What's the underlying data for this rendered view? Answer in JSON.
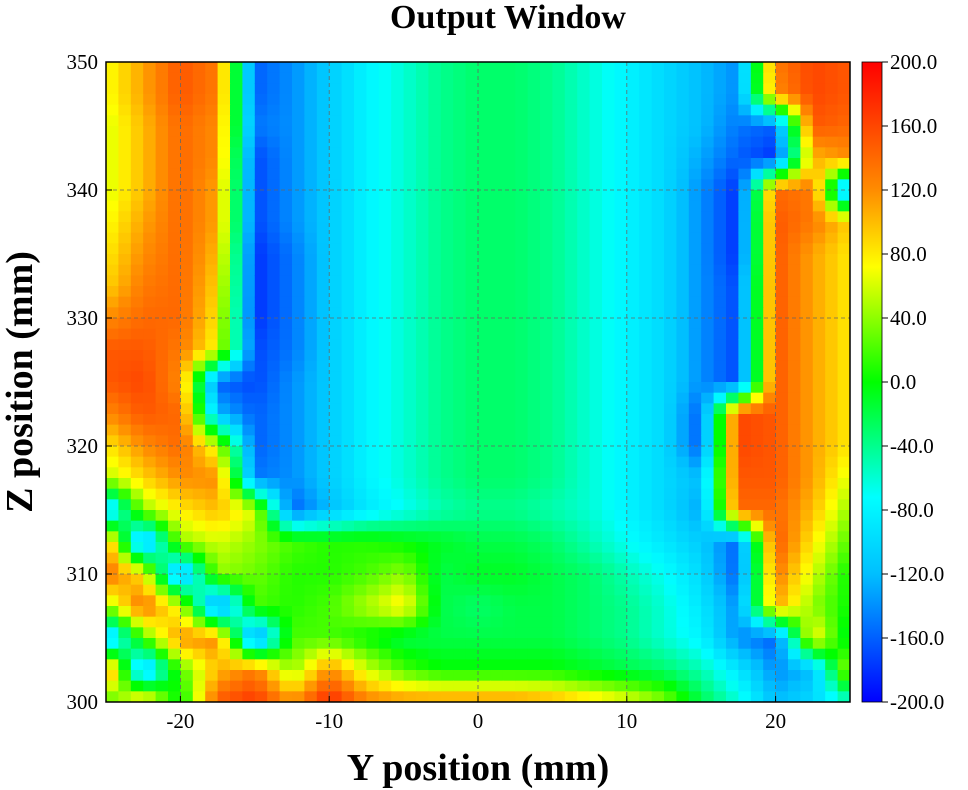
{
  "chart_data": {
    "type": "heatmap",
    "title": "Output Window",
    "xlabel": "Y position (mm)",
    "ylabel": "Z position (mm)",
    "xlim": [
      -25,
      25
    ],
    "ylim": [
      300,
      350
    ],
    "xticks": [
      -20,
      -10,
      0,
      10,
      20
    ],
    "yticks": [
      300,
      310,
      320,
      330,
      340,
      350
    ],
    "grid": true,
    "colorbar": {
      "range": [
        -200,
        200
      ],
      "ticks": [
        "200.0",
        "160.0",
        "120.0",
        "80.0",
        "40.0",
        "0.0",
        "-40.0",
        "-80.0",
        "-120.0",
        "-160.0",
        "-200.0"
      ],
      "colormap": "jet"
    },
    "grid_x": [
      -25,
      -22.5,
      -20,
      -17.5,
      -15,
      -12.5,
      -10,
      -7.5,
      -5,
      -2.5,
      0,
      2.5,
      5,
      7.5,
      10,
      12.5,
      15,
      17.5,
      20,
      22.5,
      25
    ],
    "grid_y": [
      350,
      347.5,
      345,
      342.5,
      340,
      337.5,
      335,
      332.5,
      330,
      327.5,
      325,
      322.5,
      320,
      317.5,
      315,
      312.5,
      310,
      307.5,
      305,
      302.5,
      300
    ],
    "values": [
      [
        70,
        110,
        150,
        130,
        -160,
        -140,
        -110,
        -80,
        -60,
        -40,
        -30,
        -30,
        -40,
        -60,
        -80,
        -100,
        -120,
        -140,
        130,
        160,
        150
      ],
      [
        70,
        110,
        150,
        130,
        -160,
        -140,
        -110,
        -80,
        -60,
        -40,
        -30,
        -30,
        -40,
        -60,
        -80,
        -100,
        -120,
        -140,
        120,
        160,
        150
      ],
      [
        60,
        100,
        140,
        120,
        -150,
        -140,
        -110,
        -80,
        -60,
        -40,
        -30,
        -30,
        -40,
        -60,
        -80,
        -100,
        -120,
        -150,
        -160,
        150,
        140
      ],
      [
        60,
        100,
        140,
        120,
        -170,
        -140,
        -110,
        -80,
        -60,
        -40,
        -30,
        -30,
        -40,
        -60,
        -80,
        -100,
        -130,
        -160,
        -180,
        100,
        120
      ],
      [
        60,
        100,
        140,
        110,
        -170,
        -140,
        -110,
        -80,
        -60,
        -40,
        -30,
        -30,
        -40,
        -60,
        -80,
        -100,
        -140,
        -180,
        140,
        130,
        -160
      ],
      [
        70,
        110,
        140,
        110,
        -170,
        -140,
        -110,
        -80,
        -60,
        -40,
        -30,
        -30,
        -40,
        -60,
        -80,
        -100,
        -140,
        -180,
        150,
        130,
        90
      ],
      [
        80,
        120,
        140,
        100,
        -180,
        -150,
        -110,
        -80,
        -60,
        -40,
        -30,
        -30,
        -40,
        -60,
        -80,
        -100,
        -140,
        -180,
        150,
        110,
        80
      ],
      [
        90,
        130,
        140,
        90,
        -180,
        -150,
        -110,
        -80,
        -60,
        -40,
        -30,
        -30,
        -40,
        -60,
        -80,
        -100,
        -140,
        -170,
        150,
        110,
        80
      ],
      [
        120,
        140,
        140,
        80,
        -180,
        -150,
        -110,
        -80,
        -60,
        -40,
        -30,
        -30,
        -40,
        -60,
        -80,
        -100,
        -140,
        -170,
        150,
        110,
        80
      ],
      [
        150,
        150,
        130,
        70,
        -170,
        -150,
        -110,
        -80,
        -60,
        -40,
        -30,
        -30,
        -40,
        -60,
        -80,
        -100,
        -140,
        -170,
        150,
        110,
        80
      ],
      [
        150,
        160,
        120,
        -160,
        -170,
        -140,
        -110,
        -80,
        -60,
        -40,
        -30,
        -30,
        -40,
        -60,
        -80,
        -100,
        -140,
        -170,
        150,
        110,
        80
      ],
      [
        120,
        150,
        140,
        -120,
        -160,
        -140,
        -110,
        -80,
        -60,
        -40,
        -30,
        -30,
        -40,
        -60,
        -80,
        -100,
        -160,
        160,
        150,
        110,
        80
      ],
      [
        80,
        120,
        140,
        60,
        -160,
        -140,
        -110,
        -80,
        -60,
        -40,
        -30,
        -30,
        -40,
        -60,
        -80,
        -100,
        -160,
        160,
        150,
        110,
        80
      ],
      [
        50,
        90,
        120,
        120,
        -150,
        -140,
        -110,
        -80,
        -60,
        -40,
        -30,
        -30,
        -40,
        -60,
        -80,
        -100,
        -120,
        150,
        150,
        110,
        60
      ],
      [
        -120,
        40,
        80,
        100,
        60,
        -160,
        -120,
        -90,
        -70,
        -50,
        -40,
        -40,
        -50,
        -60,
        -80,
        -100,
        -130,
        140,
        140,
        100,
        40
      ],
      [
        120,
        -140,
        40,
        60,
        40,
        20,
        10,
        10,
        0,
        -10,
        -20,
        -20,
        -30,
        -50,
        -70,
        -90,
        -110,
        -160,
        150,
        80,
        20
      ],
      [
        140,
        80,
        -140,
        40,
        30,
        10,
        10,
        20,
        40,
        -20,
        -10,
        -10,
        -20,
        -30,
        -50,
        -70,
        -100,
        -160,
        130,
        60,
        0
      ],
      [
        40,
        140,
        60,
        -160,
        20,
        10,
        20,
        50,
        80,
        -20,
        -30,
        -20,
        -20,
        -30,
        -40,
        -60,
        -90,
        -140,
        110,
        40,
        0
      ],
      [
        -130,
        20,
        120,
        120,
        -160,
        20,
        20,
        0,
        -20,
        -20,
        -20,
        -20,
        -20,
        -30,
        -40,
        -60,
        -80,
        -140,
        -160,
        80,
        -20
      ],
      [
        140,
        -130,
        20,
        100,
        130,
        40,
        120,
        60,
        20,
        0,
        0,
        0,
        0,
        -10,
        -20,
        -30,
        -50,
        -90,
        -140,
        -120,
        60
      ],
      [
        10,
        100,
        -10,
        150,
        170,
        120,
        180,
        130,
        120,
        120,
        120,
        120,
        110,
        90,
        70,
        40,
        -20,
        -60,
        -120,
        -100,
        -60
      ]
    ]
  }
}
